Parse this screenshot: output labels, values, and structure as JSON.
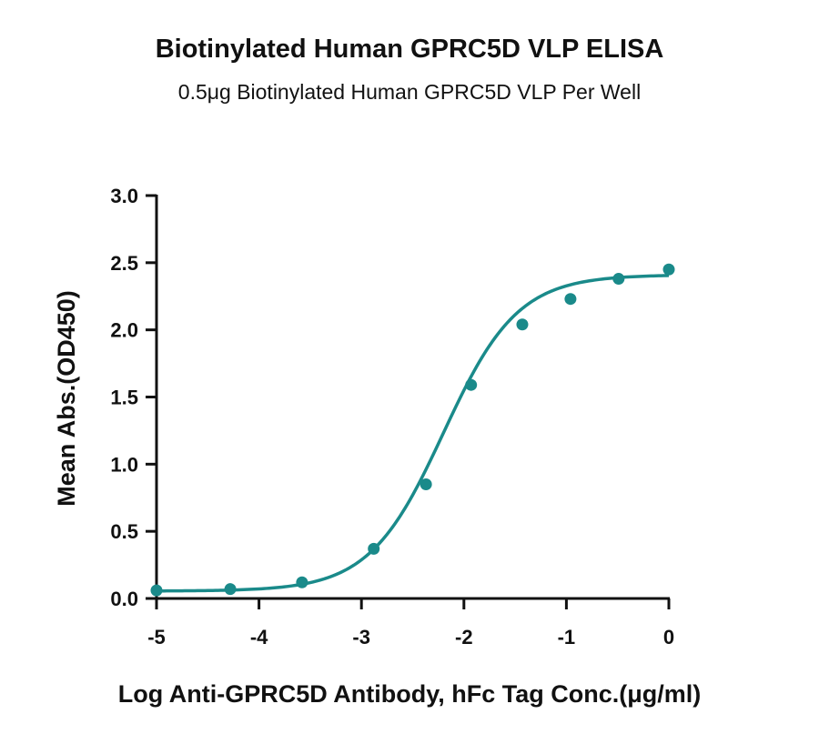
{
  "chart_data": {
    "type": "scatter",
    "title": "Biotinylated Human GPRC5D VLP ELISA",
    "subtitle": "0.5μg Biotinylated Human GPRC5D VLP Per Well",
    "xlabel": "Log  Anti-GPRC5D Antibody, hFc Tag Conc.(μg/ml)",
    "ylabel": "Mean Abs.(OD450)",
    "xlim": [
      -5,
      0
    ],
    "ylim": [
      0,
      3.0
    ],
    "xticks": [
      -5,
      -4,
      -3,
      -2,
      -1,
      0
    ],
    "xtick_labels": [
      "-5",
      "-4",
      "-3",
      "-2",
      "-1",
      "0"
    ],
    "yticks": [
      0,
      0.5,
      1.0,
      1.5,
      2.0,
      2.5,
      3.0
    ],
    "ytick_labels": [
      "0.0",
      "0.5",
      "1.0",
      "1.5",
      "2.0",
      "2.5",
      "3.0"
    ],
    "grid": false,
    "color": "#1a8a8a",
    "series": [
      {
        "x": [
          -5.0,
          -4.28,
          -3.58,
          -2.88,
          -2.37,
          -1.93,
          -1.43,
          -0.96,
          -0.49,
          0.0
        ],
        "y": [
          0.06,
          0.07,
          0.12,
          0.37,
          0.85,
          1.59,
          2.04,
          2.23,
          2.38,
          2.45
        ]
      }
    ],
    "fit": {
      "model": "4PL",
      "bottom": 0.055,
      "top": 2.41,
      "logEC50": -2.2,
      "hill": 1.2
    }
  }
}
